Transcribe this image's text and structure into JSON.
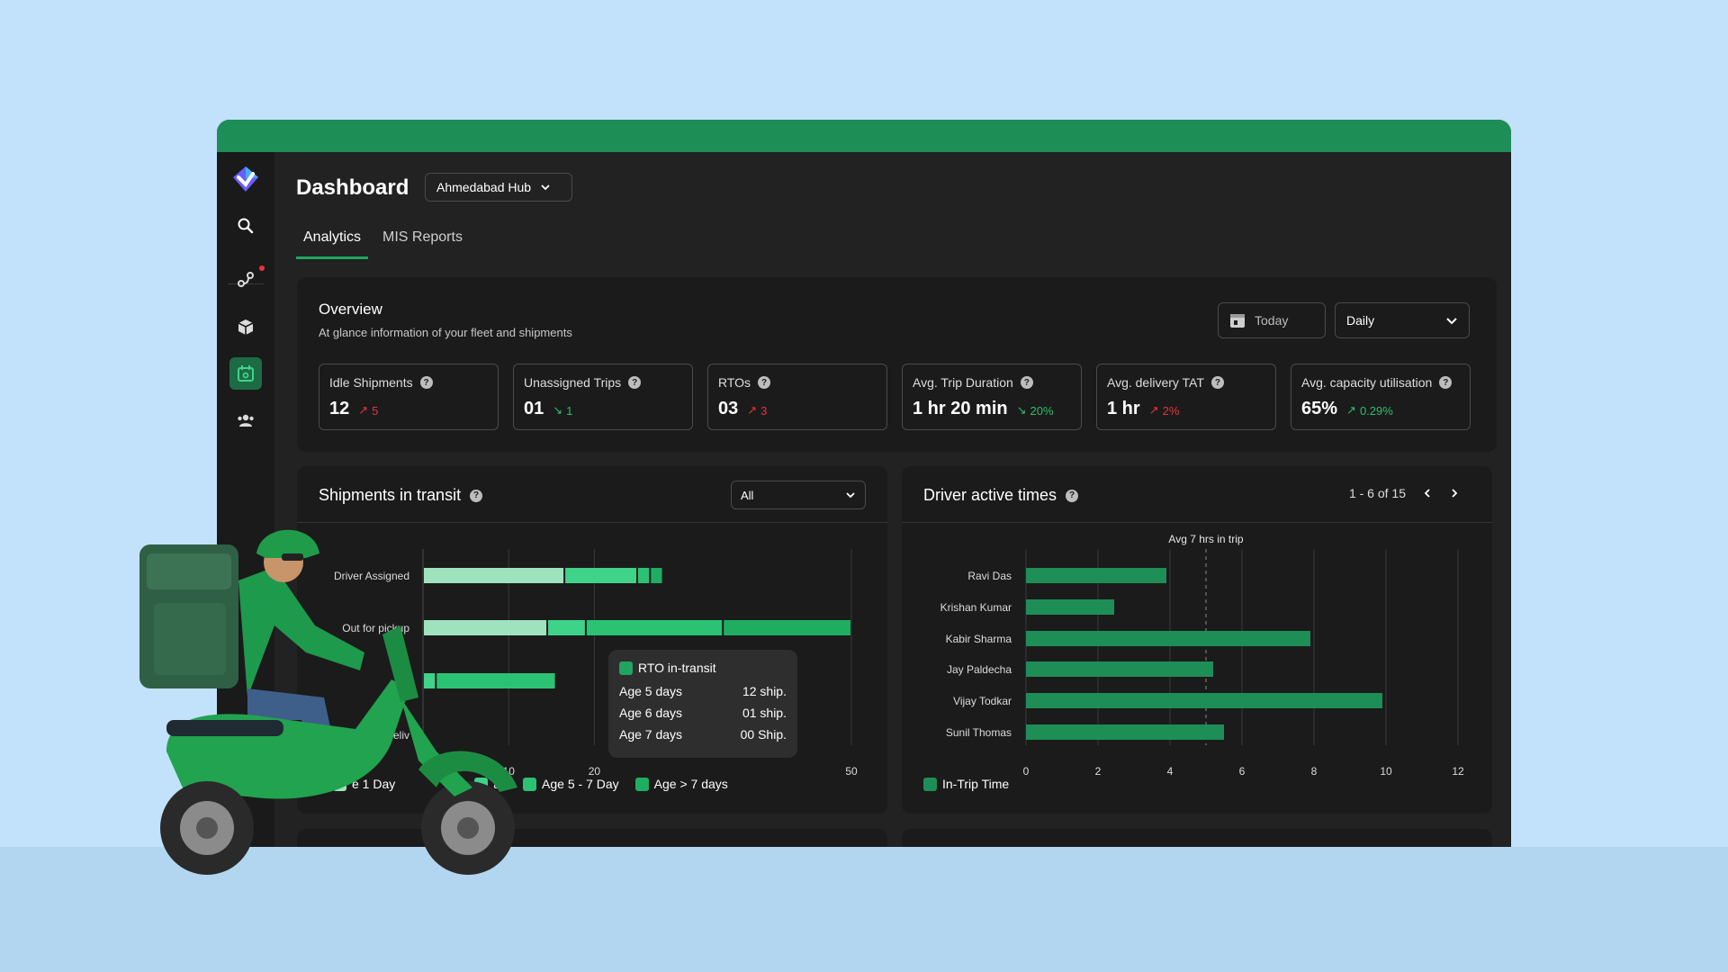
{
  "colors": {
    "accent": "#22a35f",
    "topbar": "#1e8e57",
    "bar_light": "#9fe3be",
    "bar_mid": "#3fd38a",
    "bar_dark": "#1fad62",
    "bar_driver": "#1e8e57",
    "up_red": "#e5343f",
    "down_green": "#2fbf6b"
  },
  "sidebar": {
    "icons": [
      "logo-icon",
      "search-icon",
      "route-icon",
      "package-icon",
      "calendar-icon",
      "users-icon"
    ]
  },
  "header": {
    "title": "Dashboard",
    "hub": "Ahmedabad Hub"
  },
  "tabs": [
    {
      "label": "Analytics"
    },
    {
      "label": "MIS Reports"
    }
  ],
  "overview": {
    "title": "Overview",
    "subtitle": "At glance information of your fleet and shipments",
    "date_button": "Today",
    "period": "Daily",
    "kpis": [
      {
        "label": "Idle Shipments",
        "value": "12",
        "delta": "5",
        "direction": "up"
      },
      {
        "label": "Unassigned Trips",
        "value": "01",
        "delta": "1",
        "direction": "down"
      },
      {
        "label": "RTOs",
        "value": "03",
        "delta": "3",
        "direction": "up"
      },
      {
        "label": "Avg. Trip Duration",
        "value": "1 hr 20 min",
        "delta": "20%",
        "direction": "down"
      },
      {
        "label": "Avg. delivery TAT",
        "value": "1 hr",
        "delta": "2%",
        "direction": "up"
      },
      {
        "label": "Avg. capacity utilisation",
        "value": "65%",
        "delta": "0.29%",
        "direction": "up-good"
      }
    ]
  },
  "shipments": {
    "title": "Shipments in transit",
    "filter": "All",
    "legend": [
      "e 1 Day",
      "ay",
      "Age 5 - 7 Day",
      "Age > 7 days"
    ],
    "tooltip": {
      "title": "RTO in-transit",
      "rows": [
        {
          "label": "Age 5 days",
          "value": "12 ship."
        },
        {
          "label": "Age 6 days",
          "value": "01 ship."
        },
        {
          "label": "Age 7 days",
          "value": "00 Ship."
        }
      ]
    }
  },
  "drivers": {
    "title": "Driver active times",
    "pager": "1 - 6 of 15",
    "legend": "In-Trip Time"
  },
  "chart_data": [
    {
      "type": "bar",
      "orientation": "horizontal",
      "stacked": true,
      "categories": [
        "Driver Assigned",
        "Out for pickup",
        "",
        "deliv"
      ],
      "series": [
        {
          "values": [
            16.5,
            14.5,
            0,
            0
          ]
        },
        {
          "values": [
            8.5,
            4.5,
            1.5,
            0
          ]
        },
        {
          "values": [
            1.5,
            16,
            14,
            0
          ]
        },
        {
          "values": [
            1.5,
            15,
            0,
            0
          ]
        }
      ],
      "xticks": [
        "10",
        "20",
        "50"
      ],
      "xlim": [
        0,
        50
      ],
      "grid": true
    },
    {
      "type": "bar",
      "orientation": "horizontal",
      "categories": [
        "Ravi Das",
        "Krishan Kumar",
        "Kabir Sharma",
        "Jay Paldecha",
        "Vijay Todkar",
        "Sunil Thomas"
      ],
      "series": [
        {
          "name": "In-Trip Time",
          "values": [
            3.9,
            2.45,
            7.9,
            5.2,
            9.9,
            5.5
          ]
        }
      ],
      "xticks": [
        0,
        2,
        4,
        6,
        8,
        10,
        12
      ],
      "xlim": [
        0,
        12
      ],
      "annotation": {
        "text": "Avg 7 hrs in trip",
        "x": 5
      },
      "grid": true
    }
  ]
}
